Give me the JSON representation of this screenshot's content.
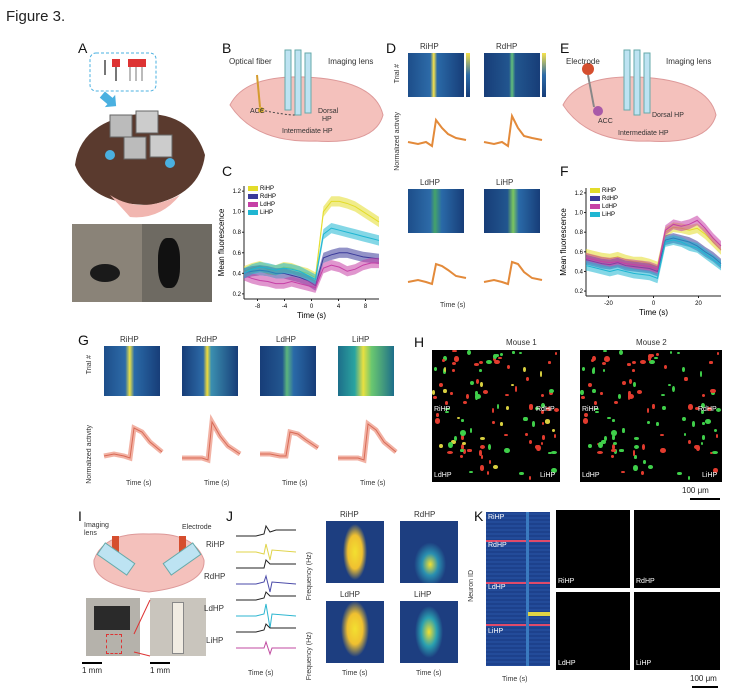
{
  "figure": {
    "title": "Figure 3."
  },
  "panels": {
    "A": {
      "label": "A"
    },
    "B": {
      "label": "B",
      "optical_fiber": "Optical fiber",
      "imaging_lens": "Imaging lens",
      "acc": "ACC",
      "dorsal": "Dorsal",
      "hp": "HP",
      "intermediate": "Intermediate HP"
    },
    "C": {
      "label": "C",
      "ylabel": "Mean fluorescence",
      "xlabel": "Time (s)"
    },
    "D": {
      "label": "D",
      "t1": "RiHP",
      "t2": "RdHP",
      "t3": "LdHP",
      "t4": "LiHP",
      "trial": "Trial #",
      "norm": "Normalized activity",
      "time": "Time (s)"
    },
    "E": {
      "label": "E",
      "electrode": "Electrode",
      "imaging_lens": "Imaging lens",
      "acc": "ACC",
      "dorsal": "Dorsal HP",
      "intermediate": "Intermediate HP"
    },
    "F": {
      "label": "F",
      "ylabel": "Mean fluorescence",
      "xlabel": "Time (s)"
    },
    "G": {
      "label": "G",
      "t1": "RiHP",
      "t2": "RdHP",
      "t3": "LdHP",
      "t4": "LiHP",
      "trial": "Trial #",
      "norm": "Normalized activity",
      "time": "Time (s)"
    },
    "H": {
      "label": "H",
      "m1": "Mouse 1",
      "m2": "Mouse 2",
      "riHP": "RiHP",
      "rdHP": "RdHP",
      "ldHP": "LdHP",
      "liHP": "LiHP",
      "scale": "100 μm"
    },
    "I": {
      "label": "I",
      "imaging": "Imaging",
      "lens": "lens",
      "electrode": "Electrode",
      "scale1": "1 mm",
      "scale2": "1 mm"
    },
    "J": {
      "label": "J",
      "riHP": "RiHP",
      "rdHP": "RdHP",
      "ldHP": "LdHP",
      "liHP": "LiHP",
      "time": "Time (s)",
      "freq": "Frequency (Hz)",
      "time2": "Time (s)"
    },
    "K": {
      "label": "K",
      "riHP": "RiHP",
      "rdHP": "RdHP",
      "ldHP": "LdHP",
      "liHP": "LiHP",
      "neuron": "Neuron ID",
      "time": "Time (s)",
      "scale": "100 μm"
    }
  },
  "chart_data": [
    {
      "panel": "C",
      "type": "line",
      "xlabel": "Time (s)",
      "ylabel": "Mean fluorescence",
      "x_ticks": [
        "-8",
        "-4",
        "0",
        "4",
        "8"
      ],
      "y_ticks": [
        "0.2",
        "0.4",
        "0.6",
        "0.8",
        "1.0",
        "1.2"
      ],
      "xlim": [
        -10,
        10
      ],
      "ylim": [
        0.15,
        1.25
      ],
      "legend": [
        "RiHP",
        "RdHP",
        "LdHP",
        "LiHP"
      ],
      "legend_position": "top-left",
      "colors": [
        "#e3dc2a",
        "#3a3a9a",
        "#c640a6",
        "#1fb6d2"
      ],
      "series": [
        {
          "name": "RiHP",
          "values": [
            0.42,
            0.45,
            0.47,
            0.44,
            0.43,
            0.46,
            0.45,
            0.42,
            0.4,
            0.36,
            1.0,
            1.1,
            1.1,
            1.08,
            1.05,
            1.0,
            0.95,
            0.9
          ]
        },
        {
          "name": "RdHP",
          "values": [
            0.4,
            0.42,
            0.43,
            0.42,
            0.4,
            0.4,
            0.38,
            0.36,
            0.33,
            0.28,
            0.55,
            0.58,
            0.6,
            0.6,
            0.58,
            0.56,
            0.55,
            0.54
          ]
        },
        {
          "name": "LdHP",
          "values": [
            0.38,
            0.35,
            0.33,
            0.32,
            0.3,
            0.3,
            0.32,
            0.3,
            0.28,
            0.26,
            0.45,
            0.48,
            0.46,
            0.42,
            0.44,
            0.48,
            0.5,
            0.5
          ]
        },
        {
          "name": "LiHP",
          "values": [
            0.4,
            0.44,
            0.46,
            0.45,
            0.43,
            0.45,
            0.44,
            0.42,
            0.38,
            0.34,
            0.78,
            0.84,
            0.82,
            0.8,
            0.78,
            0.76,
            0.74,
            0.72
          ]
        }
      ]
    },
    {
      "panel": "F",
      "type": "line",
      "xlabel": "Time (s)",
      "ylabel": "Mean fluorescence",
      "x_ticks": [
        "-20",
        "0",
        "20"
      ],
      "y_ticks": [
        "0.2",
        "0.4",
        "0.6",
        "0.8",
        "1.0",
        "1.2"
      ],
      "xlim": [
        -30,
        30
      ],
      "ylim": [
        0.15,
        1.25
      ],
      "legend": [
        "RiHP",
        "RdHP",
        "LdHP",
        "LiHP"
      ],
      "legend_position": "top-left",
      "colors": [
        "#e3dc2a",
        "#3a3a9a",
        "#c640a6",
        "#1fb6d2"
      ],
      "series": [
        {
          "name": "RiHP",
          "values": [
            0.58,
            0.56,
            0.54,
            0.53,
            0.55,
            0.52,
            0.5,
            0.5,
            0.48,
            0.45,
            0.8,
            0.85,
            0.84,
            0.82,
            0.84,
            0.78,
            0.7,
            0.62
          ]
        },
        {
          "name": "RdHP",
          "values": [
            0.52,
            0.5,
            0.48,
            0.47,
            0.49,
            0.46,
            0.45,
            0.44,
            0.43,
            0.4,
            0.72,
            0.74,
            0.72,
            0.7,
            0.66,
            0.6,
            0.55,
            0.48
          ]
        },
        {
          "name": "LdHP",
          "values": [
            0.54,
            0.52,
            0.5,
            0.49,
            0.5,
            0.48,
            0.47,
            0.46,
            0.45,
            0.42,
            0.82,
            0.88,
            0.86,
            0.88,
            0.92,
            0.84,
            0.74,
            0.66
          ]
        },
        {
          "name": "LiHP",
          "values": [
            0.46,
            0.44,
            0.42,
            0.4,
            0.42,
            0.4,
            0.38,
            0.37,
            0.36,
            0.33,
            0.7,
            0.72,
            0.7,
            0.66,
            0.64,
            0.58,
            0.52,
            0.46
          ]
        }
      ]
    }
  ]
}
